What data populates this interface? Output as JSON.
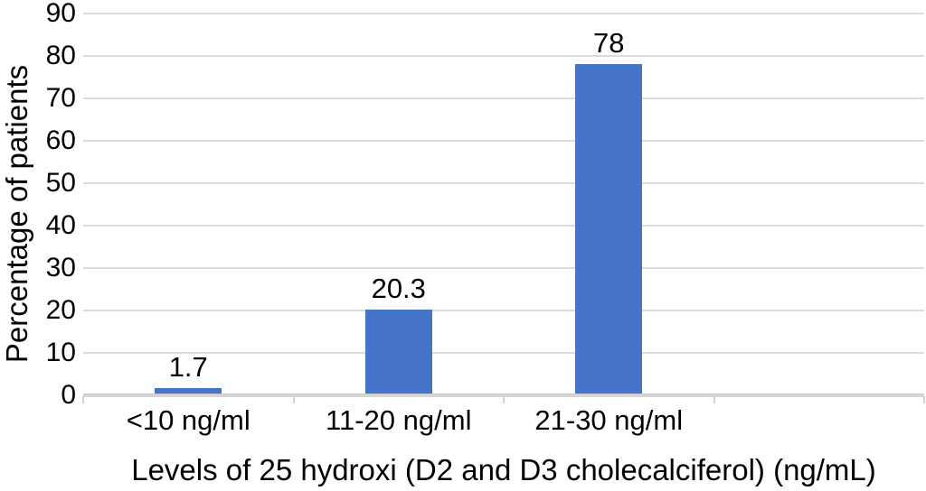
{
  "chart_data": {
    "type": "bar",
    "title": "",
    "xlabel": "Levels of 25 hydroxi (D2 and D3 cholecalciferol) (ng/mL)",
    "ylabel": "Percentage of patients",
    "categories": [
      "<10 ng/ml",
      "11-20 ng/ml",
      "21-30 ng/ml"
    ],
    "values": [
      1.7,
      20.3,
      78
    ],
    "data_labels": [
      "1.7",
      "20.3",
      "78"
    ],
    "ylim": [
      0,
      90
    ],
    "yticks": [
      0,
      10,
      20,
      30,
      40,
      50,
      60,
      70,
      80,
      90
    ],
    "num_category_slots": 4,
    "grid": "horizontal-only",
    "legend": "none",
    "bar_color": "#4674C8",
    "gridline_color": "#DBDBDB",
    "axis_line_color": "#D5D5D5",
    "text_color": "#000000"
  }
}
